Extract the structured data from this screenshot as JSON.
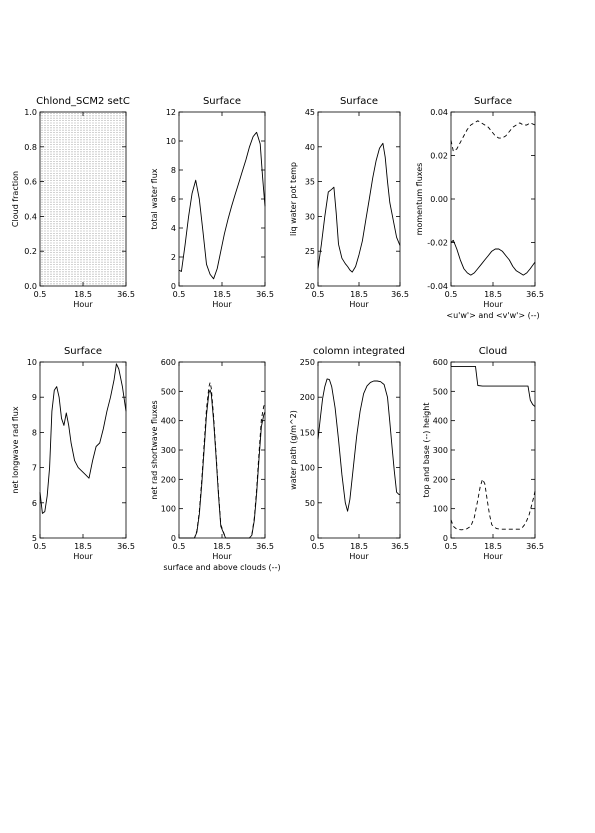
{
  "chart_data": [
    {
      "type": "heatmap",
      "title": "Chlond_SCM2 setC",
      "xlabel": "Hour",
      "ylabel": "Cloud fraction",
      "xlim": [
        0.5,
        36.5
      ],
      "ylim": [
        0.0,
        1.0
      ],
      "xticks": [
        "0.5",
        "18.5",
        "36.5"
      ],
      "yticks": [
        "0.0",
        "0.2",
        "0.4",
        "0.6",
        "0.8",
        "1.0"
      ],
      "note": "dotted vertical fill pattern, no explicit values"
    },
    {
      "type": "line",
      "title": "Surface",
      "xlabel": "Hour",
      "ylabel": "total water flux",
      "xlim": [
        0.5,
        36.5
      ],
      "ylim": [
        0,
        12
      ],
      "xticks": [
        "0.5",
        "18.5",
        "36.5"
      ],
      "yticks": [
        "0",
        "2",
        "4",
        "6",
        "8",
        "10",
        "12"
      ],
      "series": [
        {
          "style": "solid",
          "x": [
            0.5,
            1.5,
            3,
            4.5,
            6,
            7.5,
            9,
            10.5,
            12,
            13.5,
            15,
            16.5,
            18,
            19.5,
            21,
            22.5,
            24,
            25.5,
            27,
            28.5,
            30,
            31.5,
            33,
            34.5,
            35.5,
            36.5
          ],
          "y": [
            1.1,
            1.0,
            2.8,
            4.8,
            6.4,
            7.3,
            6.0,
            3.8,
            1.5,
            0.8,
            0.5,
            1.2,
            2.4,
            3.6,
            4.6,
            5.5,
            6.3,
            7.1,
            7.9,
            8.7,
            9.6,
            10.3,
            10.6,
            9.8,
            7.5,
            5.5
          ]
        }
      ]
    },
    {
      "type": "line",
      "title": "Surface",
      "xlabel": "Hour",
      "ylabel": "liq water pot temp",
      "xlim": [
        0.5,
        36.5
      ],
      "ylim": [
        20,
        45
      ],
      "xticks": [
        "0.5",
        "18.5",
        "36.5"
      ],
      "yticks": [
        "20",
        "25",
        "30",
        "35",
        "40",
        "45"
      ],
      "series": [
        {
          "style": "solid",
          "x": [
            0.5,
            2,
            3.5,
            5,
            6.5,
            7.5,
            8.5,
            9.5,
            11,
            12.5,
            13.5,
            14.5,
            15.5,
            17,
            18.5,
            20,
            21.5,
            23,
            24.5,
            26,
            27.5,
            29,
            30,
            31,
            32,
            33.5,
            35,
            36.5
          ],
          "y": [
            22.5,
            26.0,
            30.0,
            33.5,
            33.9,
            34.2,
            30.5,
            26.0,
            24.0,
            23.2,
            22.8,
            22.3,
            22.0,
            22.8,
            24.5,
            26.5,
            29.5,
            32.5,
            35.5,
            38.0,
            39.8,
            40.5,
            38.5,
            35.0,
            32.0,
            29.5,
            27.0,
            25.8
          ]
        }
      ]
    },
    {
      "type": "line",
      "title": "Surface",
      "xlabel": "Hour",
      "ylabel": "momentum fluxes",
      "subxlabel": "<u'w'> and <v'w'> (--)",
      "xlim": [
        0.5,
        36.5
      ],
      "ylim": [
        -0.04,
        0.04
      ],
      "xticks": [
        "0.5",
        "18.5",
        "36.5"
      ],
      "yticks": [
        "-0.04",
        "-0.02",
        "0.00",
        "0.02",
        "0.04"
      ],
      "series": [
        {
          "name": "<u'w'>",
          "style": "solid",
          "x": [
            0.5,
            1.5,
            3,
            4.5,
            6,
            7.5,
            9,
            10.5,
            12,
            13.5,
            15,
            16.5,
            18,
            19.5,
            21,
            22.5,
            24,
            25.5,
            27,
            28.5,
            30,
            31.5,
            33,
            34.5,
            36.5
          ],
          "y": [
            -0.02,
            -0.019,
            -0.023,
            -0.028,
            -0.032,
            -0.034,
            -0.035,
            -0.034,
            -0.032,
            -0.03,
            -0.028,
            -0.026,
            -0.024,
            -0.023,
            -0.023,
            -0.024,
            -0.026,
            -0.028,
            -0.031,
            -0.033,
            -0.034,
            -0.035,
            -0.034,
            -0.032,
            -0.029
          ]
        },
        {
          "name": "<v'w'>",
          "style": "dashed",
          "x": [
            0.5,
            1.5,
            3,
            4.5,
            6,
            7.5,
            9,
            10.5,
            12,
            13.5,
            15,
            16.5,
            18,
            19.5,
            21,
            22.5,
            24,
            25.5,
            27,
            28.5,
            30,
            31.5,
            33,
            34.5,
            36.5
          ],
          "y": [
            0.027,
            0.022,
            0.023,
            0.026,
            0.029,
            0.032,
            0.034,
            0.035,
            0.036,
            0.035,
            0.034,
            0.033,
            0.031,
            0.029,
            0.028,
            0.028,
            0.029,
            0.031,
            0.033,
            0.034,
            0.035,
            0.034,
            0.034,
            0.035,
            0.034
          ]
        }
      ]
    },
    {
      "type": "line",
      "title": "Surface",
      "xlabel": "Hour",
      "ylabel": "net longwave rad flux",
      "xlim": [
        0.5,
        36.5
      ],
      "ylim": [
        5,
        10
      ],
      "xticks": [
        "0.5",
        "18.5",
        "36.5"
      ],
      "yticks": [
        "5",
        "6",
        "7",
        "8",
        "9",
        "10"
      ],
      "series": [
        {
          "style": "solid",
          "x": [
            0.5,
            1.5,
            2.5,
            3.5,
            4.5,
            5.5,
            6.5,
            7.5,
            8.5,
            9.5,
            10.5,
            11.5,
            12.5,
            13.5,
            15,
            16.5,
            18,
            19.5,
            21,
            22.5,
            24,
            25.5,
            27,
            28.5,
            30,
            31.5,
            32.5,
            33.5,
            35,
            36.5
          ],
          "y": [
            6.3,
            5.7,
            5.75,
            6.2,
            7.0,
            8.6,
            9.2,
            9.3,
            9.0,
            8.4,
            8.2,
            8.55,
            8.2,
            7.7,
            7.2,
            7.0,
            6.9,
            6.8,
            6.7,
            7.2,
            7.6,
            7.7,
            8.1,
            8.6,
            9.0,
            9.5,
            9.95,
            9.8,
            9.3,
            8.6
          ]
        }
      ]
    },
    {
      "type": "line",
      "xlabel": "Hour",
      "ylabel": "net rad shortwave fluxes",
      "subxlabel": "surface and above clouds (--)",
      "xlim": [
        0.5,
        36.5
      ],
      "ylim": [
        0,
        600
      ],
      "xticks": [
        "0.5",
        "18.5",
        "36.5"
      ],
      "yticks": [
        "0",
        "100",
        "200",
        "300",
        "400",
        "500",
        "600"
      ],
      "series": [
        {
          "name": "surface",
          "style": "solid",
          "x": [
            0.5,
            2,
            4,
            6,
            7,
            8,
            9,
            10,
            11,
            12,
            13,
            13.5,
            14,
            15,
            16,
            17,
            18,
            20,
            22,
            24,
            26,
            28,
            30,
            31,
            32,
            33,
            34,
            35,
            36,
            36.5
          ],
          "y": [
            0,
            0,
            0,
            0,
            0,
            20,
            80,
            180,
            300,
            420,
            495,
            505,
            490,
            400,
            280,
            150,
            40,
            0,
            0,
            0,
            0,
            0,
            0,
            10,
            60,
            150,
            270,
            380,
            420,
            430
          ]
        },
        {
          "name": "above clouds",
          "style": "dashed",
          "x": [
            0.5,
            2,
            4,
            6,
            7,
            8,
            9,
            10,
            11,
            12,
            13,
            13.5,
            14,
            15,
            16,
            17,
            18,
            20,
            22,
            24,
            26,
            28,
            30,
            31,
            32,
            33,
            34,
            35,
            36,
            36.5
          ],
          "y": [
            0,
            0,
            0,
            0,
            0,
            25,
            90,
            195,
            320,
            440,
            515,
            530,
            510,
            415,
            290,
            160,
            45,
            0,
            0,
            0,
            0,
            0,
            0,
            12,
            68,
            165,
            290,
            405,
            450,
            455
          ]
        }
      ]
    },
    {
      "type": "line",
      "title": "colomn integrated",
      "xlabel": "Hour",
      "ylabel": "water path (g/m^2)",
      "xlim": [
        0.5,
        36.5
      ],
      "ylim": [
        0,
        250
      ],
      "xticks": [
        "0.5",
        "18.5",
        "36.5"
      ],
      "yticks": [
        "0",
        "50",
        "100",
        "150",
        "200",
        "250"
      ],
      "series": [
        {
          "style": "solid",
          "x": [
            0.5,
            1.5,
            2.5,
            3.5,
            4.5,
            5.5,
            6.5,
            8,
            9.5,
            11,
            12.5,
            13.5,
            14.5,
            16,
            17.5,
            19,
            20.5,
            22,
            23.5,
            25,
            26.5,
            28,
            29.5,
            31,
            32,
            33,
            34,
            35,
            36,
            36.5
          ],
          "y": [
            140,
            170,
            198,
            215,
            226,
            225,
            215,
            185,
            140,
            90,
            50,
            38,
            55,
            100,
            145,
            180,
            205,
            216,
            221,
            223,
            223,
            222,
            218,
            200,
            165,
            130,
            95,
            65,
            62,
            62
          ]
        }
      ]
    },
    {
      "type": "line",
      "title": "Cloud",
      "xlabel": "Hour",
      "ylabel": "top and base (--) height",
      "xlim": [
        0.5,
        36.5
      ],
      "ylim": [
        0,
        600
      ],
      "xticks": [
        "0.5",
        "18.5",
        "36.5"
      ],
      "yticks": [
        "0",
        "100",
        "200",
        "300",
        "400",
        "500",
        "600"
      ],
      "series": [
        {
          "name": "top",
          "style": "solid",
          "x": [
            0.5,
            4,
            8,
            11,
            12,
            14,
            18,
            22,
            26,
            30,
            33.5,
            34.5,
            35.5,
            36.5
          ],
          "y": [
            585,
            585,
            585,
            585,
            520,
            518,
            518,
            518,
            518,
            518,
            518,
            470,
            455,
            448
          ]
        },
        {
          "name": "base",
          "style": "dashed",
          "x": [
            0.5,
            1.5,
            3,
            5,
            7,
            9,
            10.5,
            12,
            13,
            14,
            15,
            16,
            17,
            18,
            20,
            22,
            24,
            26,
            28,
            30,
            31,
            32,
            33,
            34,
            35,
            36,
            36.5
          ],
          "y": [
            62,
            40,
            30,
            28,
            30,
            40,
            70,
            130,
            175,
            200,
            185,
            130,
            80,
            45,
            32,
            30,
            30,
            30,
            30,
            30,
            35,
            45,
            60,
            80,
            110,
            140,
            160
          ]
        }
      ]
    }
  ]
}
